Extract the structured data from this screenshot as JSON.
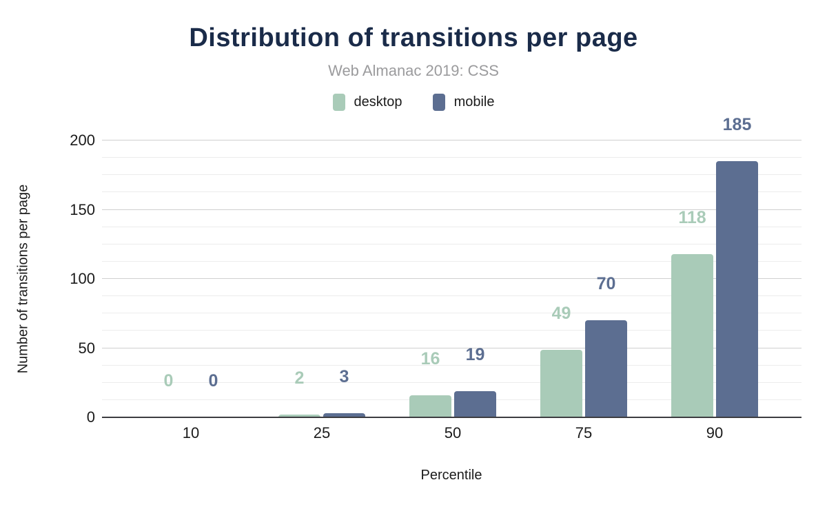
{
  "header": {
    "title": "Distribution of transitions per page",
    "subtitle": "Web Almanac 2019: CSS"
  },
  "legend": [
    {
      "label": "desktop",
      "color": "#a9cbb8"
    },
    {
      "label": "mobile",
      "color": "#5c6e91"
    }
  ],
  "colors": {
    "title": "#1a2b49",
    "subtitle": "#9b9b9d",
    "desktop": "#a9cbb8",
    "mobile": "#5c6e91",
    "grid_minor": "#ececec",
    "grid_major": "#cfcfcf",
    "axis_line": "#3c3c40"
  },
  "chart_data": {
    "type": "bar",
    "title": "Distribution of transitions per page",
    "subtitle": "Web Almanac 2019: CSS",
    "categories": [
      "10",
      "25",
      "50",
      "75",
      "90"
    ],
    "series": [
      {
        "name": "desktop",
        "color": "#a9cbb8",
        "values": [
          0,
          2,
          16,
          49,
          118
        ]
      },
      {
        "name": "mobile",
        "color": "#5c6e91",
        "values": [
          0,
          3,
          19,
          70,
          185
        ]
      }
    ],
    "xlabel": "Percentile",
    "ylabel": "Number of transitions per page",
    "ylim": [
      0,
      200
    ],
    "y_major_ticks": [
      0,
      50,
      100,
      150,
      200
    ],
    "y_minor_step": 12.5,
    "grid": true,
    "legend_position": "top",
    "data_labels": true
  }
}
